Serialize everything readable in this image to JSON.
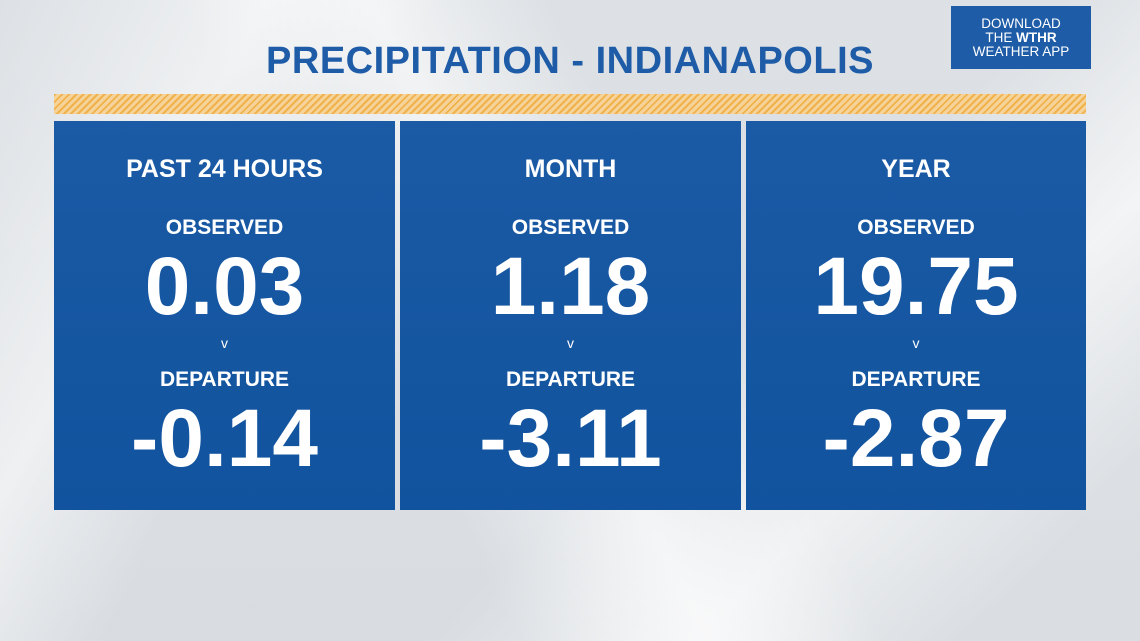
{
  "title": "PRECIPITATION - INDIANAPOLIS",
  "app_badge": {
    "line1": "DOWNLOAD",
    "line2_prefix": "THE ",
    "line2_brand": "WTHR",
    "line3": "WEATHER APP"
  },
  "panels": [
    {
      "heading": "PAST 24 HOURS",
      "observed_label": "OBSERVED",
      "observed_value": "0.03",
      "separator": "v",
      "departure_label": "DEPARTURE",
      "departure_value": "-0.14"
    },
    {
      "heading": "MONTH",
      "observed_label": "OBSERVED",
      "observed_value": "1.18",
      "separator": "v",
      "departure_label": "DEPARTURE",
      "departure_value": "-3.11"
    },
    {
      "heading": "YEAR",
      "observed_label": "OBSERVED",
      "observed_value": "19.75",
      "separator": "v",
      "departure_label": "DEPARTURE",
      "departure_value": "-2.87"
    }
  ],
  "colors": {
    "title": "#1f5ca7",
    "panel": "#1b5aa5",
    "stripe": "#f0b24a",
    "text": "#ffffff"
  }
}
